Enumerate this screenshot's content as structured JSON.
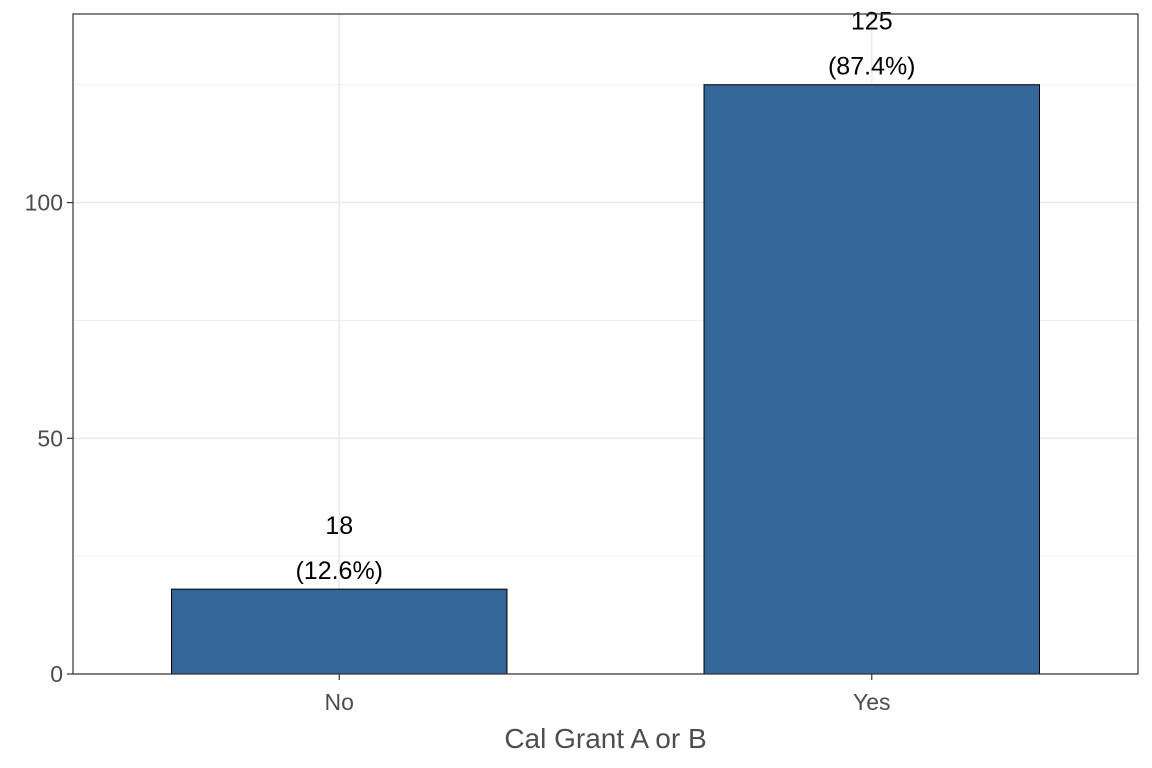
{
  "chart_data": {
    "type": "bar",
    "xlabel": "Cal Grant A or B",
    "ylabel": "",
    "categories": [
      "No",
      "Yes"
    ],
    "values": [
      18,
      125
    ],
    "data_labels": [
      {
        "count": "18",
        "percent": "(12.6%)"
      },
      {
        "count": "125",
        "percent": "(87.4%)"
      }
    ],
    "y_ticks": [
      0,
      50,
      100
    ],
    "y_tick_labels": [
      "0",
      "50",
      "100"
    ],
    "ylim": [
      0,
      140
    ],
    "grid": true,
    "legend": "none",
    "colors": {
      "bar": "#336699",
      "bar_outline": "#000000",
      "grid": "#ebebeb",
      "panel_border": "#333333"
    }
  }
}
